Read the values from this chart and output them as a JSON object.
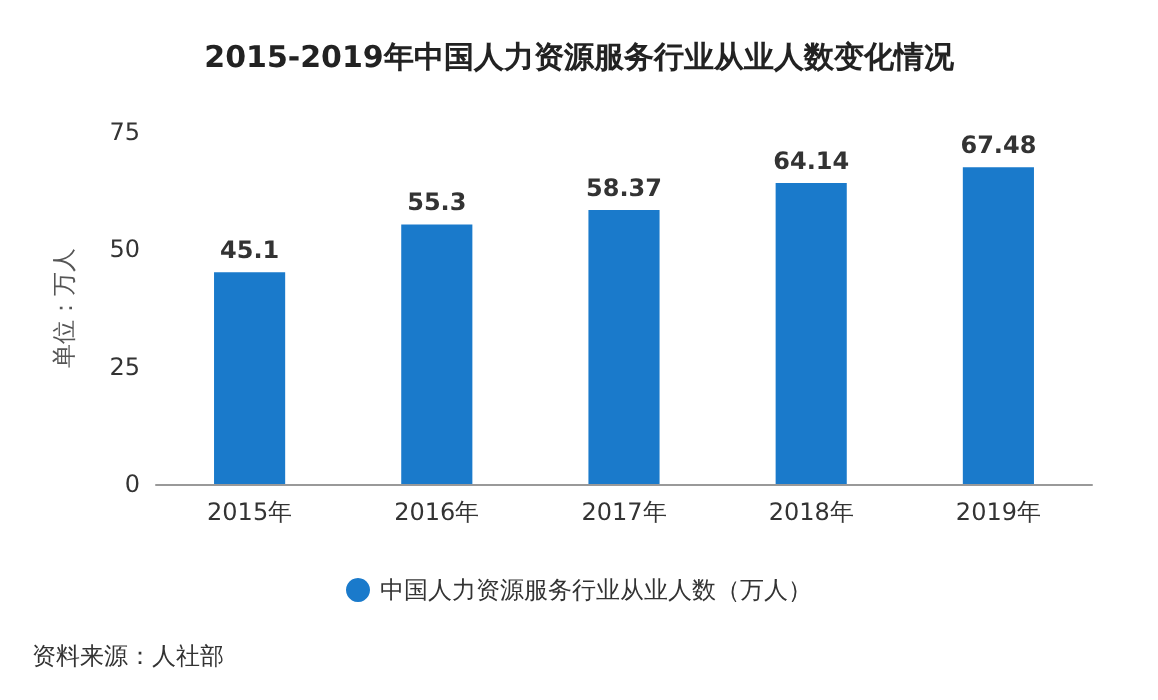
{
  "chart_data": {
    "type": "bar",
    "title": "2015-2019年中国人力资源服务行业从业人数变化情况",
    "ylabel": "单位：万人",
    "categories": [
      "2015年",
      "2016年",
      "2017年",
      "2018年",
      "2019年"
    ],
    "series": [
      {
        "name": "中国人力资源服务行业从业人数（万人）",
        "color": "#1a7acb",
        "values": [
          45.1,
          55.3,
          58.37,
          64.14,
          67.48
        ]
      }
    ],
    "ylim": [
      0,
      75
    ],
    "yticks": [
      0,
      25,
      50,
      75
    ],
    "grid": false,
    "legend": "bottom",
    "data_labels": true,
    "annotations": [
      "资料来源：人社部"
    ]
  }
}
